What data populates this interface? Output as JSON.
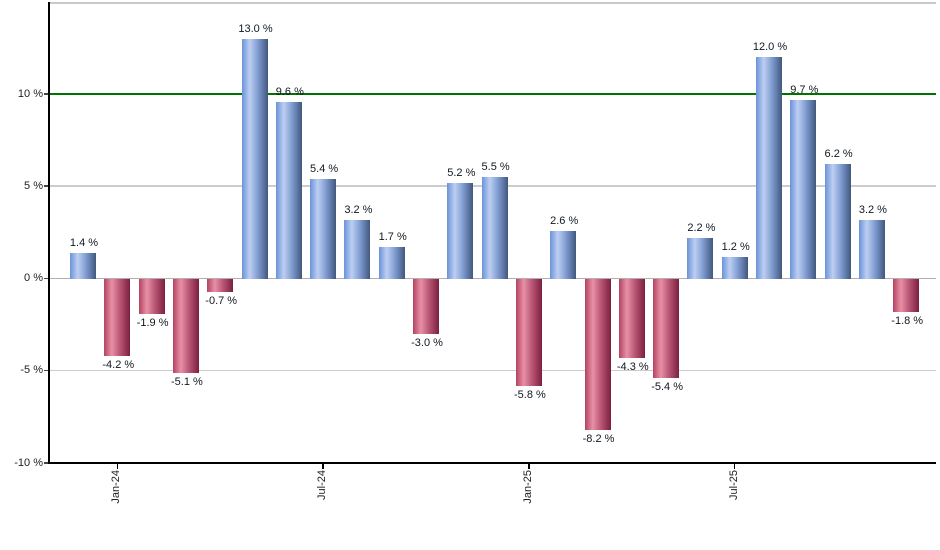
{
  "chart_data": {
    "type": "bar",
    "title": "",
    "description": "Monthly percentage returns bar chart, blue bars positive, red bars negative, green reference line at 10%",
    "values": [
      1.4,
      -4.2,
      -1.9,
      -5.1,
      -0.7,
      13.0,
      9.6,
      5.4,
      3.2,
      1.7,
      -3.0,
      5.2,
      5.5,
      -5.8,
      2.6,
      -8.2,
      -4.3,
      -5.4,
      2.2,
      1.2,
      12.0,
      9.7,
      6.2,
      3.2,
      -1.8
    ],
    "bar_labels": [
      "1.4 %",
      "-4.2 %",
      "-1.9 %",
      "-5.1 %",
      "-0.7 %",
      "13.0 %",
      "9.6 %",
      "5.4 %",
      "3.2 %",
      "1.7 %",
      "-3.0 %",
      "5.2 %",
      "5.5 %",
      "-5.8 %",
      "2.6 %",
      "-8.2 %",
      "-4.3 %",
      "-5.4 %",
      "2.2 %",
      "1.2 %",
      "12.0 %",
      "9.7 %",
      "6.2 %",
      "3.2 %",
      "-1.8 %"
    ],
    "x_tick_labels": [
      {
        "label": "Jan-24",
        "bar_index": 1
      },
      {
        "label": "Jul-24",
        "bar_index": 7
      },
      {
        "label": "Jan-25",
        "bar_index": 13
      },
      {
        "label": "Jul-25",
        "bar_index": 19
      }
    ],
    "y_ticks": [
      {
        "value": 10,
        "label": "10 %"
      },
      {
        "value": 5,
        "label": "5 %"
      },
      {
        "value": 0,
        "label": "0 %"
      },
      {
        "value": -5,
        "label": "-5 %"
      },
      {
        "value": -10,
        "label": "-10 %"
      }
    ],
    "ylim": [
      -10,
      14.95
    ],
    "grid": true,
    "legend": false,
    "reference_line": {
      "value": 10,
      "color": "#007200"
    },
    "colors": {
      "positive_bar_gradient": [
        "#6b92d8",
        "#bdcff2",
        "#7e9bd0",
        "#41587e"
      ],
      "negative_bar_gradient": [
        "#b34363",
        "#e890a6",
        "#b85574",
        "#7c1f3e"
      ],
      "axis": "#000000",
      "gridline": "#cccccc",
      "zero_line": "#b0b0b0",
      "top_border": "#c9c9c9",
      "value_label_text": "#101820",
      "tick_text": "#222222"
    }
  }
}
